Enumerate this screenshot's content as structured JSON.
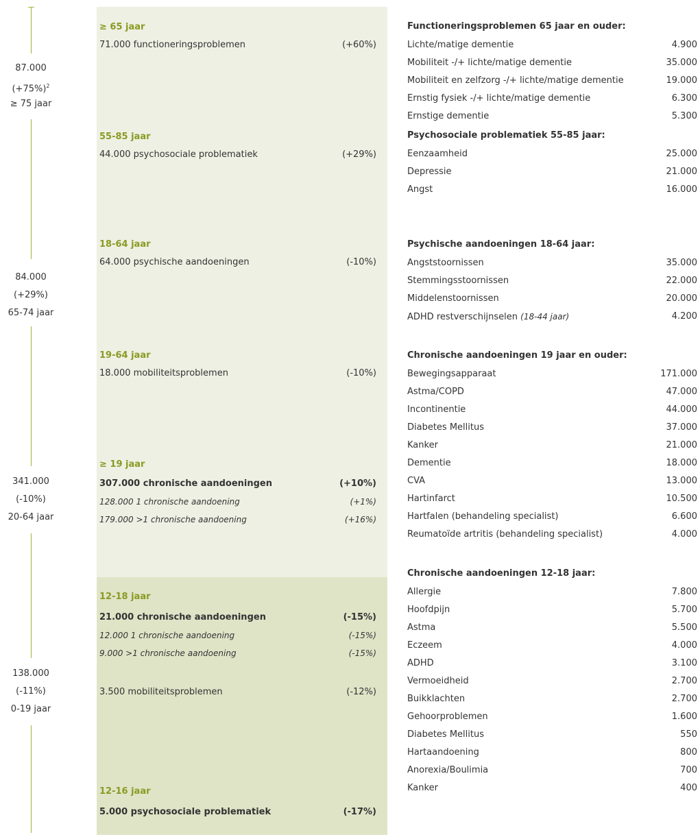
{
  "timeline": [
    {
      "value": "87.000",
      "change": "(+75%)",
      "note": "2",
      "age": "≥ 75 jaar"
    },
    {
      "value": "84.000",
      "change": "(+29%)",
      "age": "65-74 jaar"
    },
    {
      "value": "341.000",
      "change": "(-10%)",
      "age": "20-64 jaar"
    },
    {
      "value": "138.000",
      "change": "(-11%)",
      "age": "0-19 jaar"
    }
  ],
  "blocks": [
    {
      "heading": "≥ 65 jaar",
      "lines": [
        {
          "text": "71.000 functioneringsproblemen",
          "change": "(+60%)"
        }
      ]
    },
    {
      "heading": "55-85 jaar",
      "lines": [
        {
          "text": "44.000 psychosociale problematiek",
          "change": "(+29%)"
        }
      ]
    },
    {
      "heading": "18-64 jaar",
      "lines": [
        {
          "text": "64.000 psychische aandoeningen",
          "change": "(-10%)"
        }
      ]
    },
    {
      "heading": "19-64 jaar",
      "lines": [
        {
          "text": "18.000 mobiliteitsproblemen",
          "change": "(-10%)"
        }
      ]
    },
    {
      "heading": "≥ 19 jaar",
      "lines": [
        {
          "text": "307.000 chronische aandoeningen",
          "change": "(+10%)",
          "style": "bold"
        },
        {
          "text": "128.000 1 chronische aandoening",
          "change": "(+1%)",
          "style": "italic"
        },
        {
          "text": "179.000 >1 chronische aandoening",
          "change": "(+16%)",
          "style": "italic"
        }
      ]
    },
    {
      "heading": "12-18 jaar",
      "lines": [
        {
          "text": "21.000 chronische aandoeningen",
          "change": "(-15%)",
          "style": "bold"
        },
        {
          "text": "12.000 1 chronische aandoening",
          "change": "(-15%)",
          "style": "italic"
        },
        {
          "text": "9.000 >1 chronische aandoening",
          "change": "(-15%)",
          "style": "italic"
        }
      ]
    },
    {
      "lines": [
        {
          "text": "3.500 mobiliteitsproblemen",
          "change": "(-12%)"
        }
      ]
    },
    {
      "heading": "12-16 jaar",
      "lines": [
        {
          "text": "5.000 psychosociale problematiek",
          "change": "(-17%)",
          "style": "bold"
        }
      ]
    }
  ],
  "sections": [
    {
      "heading": "Functioneringsproblemen 65 jaar en ouder:",
      "rows": [
        {
          "label": "Lichte/matige dementie",
          "value": "4.900"
        },
        {
          "label": "Mobiliteit -/+ lichte/matige dementie",
          "value": "35.000"
        },
        {
          "label": "Mobiliteit en zelfzorg -/+ lichte/matige dementie",
          "value": "19.000"
        },
        {
          "label": "Ernstig fysiek -/+ lichte/matige dementie",
          "value": "6.300"
        },
        {
          "label": "Ernstige dementie",
          "value": "5.300"
        }
      ]
    },
    {
      "heading": "Psychosociale problematiek 55-85 jaar:",
      "rows": [
        {
          "label": "Eenzaamheid",
          "value": "25.000"
        },
        {
          "label": "Depressie",
          "value": "21.000"
        },
        {
          "label": "Angst",
          "value": "16.000"
        }
      ]
    },
    {
      "heading": "Psychische aandoeningen 18-64 jaar:",
      "rows": [
        {
          "label": "Angststoornissen",
          "value": "35.000"
        },
        {
          "label": "Stemmingsstoornissen",
          "value": "22.000"
        },
        {
          "label": "Middelenstoornissen",
          "value": "20.000"
        },
        {
          "label": "ADHD restverschijnselen",
          "note": "(18-44 jaar)",
          "value": "4.200"
        }
      ]
    },
    {
      "heading": "Chronische aandoeningen 19 jaar en ouder:",
      "rows": [
        {
          "label": "Bewegingsapparaat",
          "value": "171.000"
        },
        {
          "label": "Astma/COPD",
          "value": "47.000"
        },
        {
          "label": "Incontinentie",
          "value": "44.000"
        },
        {
          "label": "Diabetes Mellitus",
          "value": "37.000"
        },
        {
          "label": "Kanker",
          "value": "21.000"
        },
        {
          "label": "Dementie",
          "value": "18.000"
        },
        {
          "label": "CVA",
          "value": "13.000"
        },
        {
          "label": "Hartinfarct",
          "value": "10.500"
        },
        {
          "label": "Hartfalen (behandeling specialist)",
          "value": "6.600"
        },
        {
          "label": "Reumatoïde artritis (behandeling specialist)",
          "value": "4.000"
        }
      ]
    },
    {
      "heading": "Chronische aandoeningen 12-18 jaar:",
      "rows": [
        {
          "label": "Allergie",
          "value": "7.800"
        },
        {
          "label": "Hoofdpijn",
          "value": "5.700"
        },
        {
          "label": "Astma",
          "value": "5.500"
        },
        {
          "label": "Eczeem",
          "value": "4.000"
        },
        {
          "label": "ADHD",
          "value": "3.100"
        },
        {
          "label": "Vermoeidheid",
          "value": "2.700"
        },
        {
          "label": "Buikklachten",
          "value": "2.700"
        },
        {
          "label": "Gehoorproblemen",
          "value": "1.600"
        },
        {
          "label": "Diabetes Mellitus",
          "value": "550"
        },
        {
          "label": "Hartaandoening",
          "value": "800"
        },
        {
          "label": "Anorexia/Boulimia",
          "value": "700"
        },
        {
          "label": "Kanker",
          "value": "400"
        }
      ]
    }
  ]
}
